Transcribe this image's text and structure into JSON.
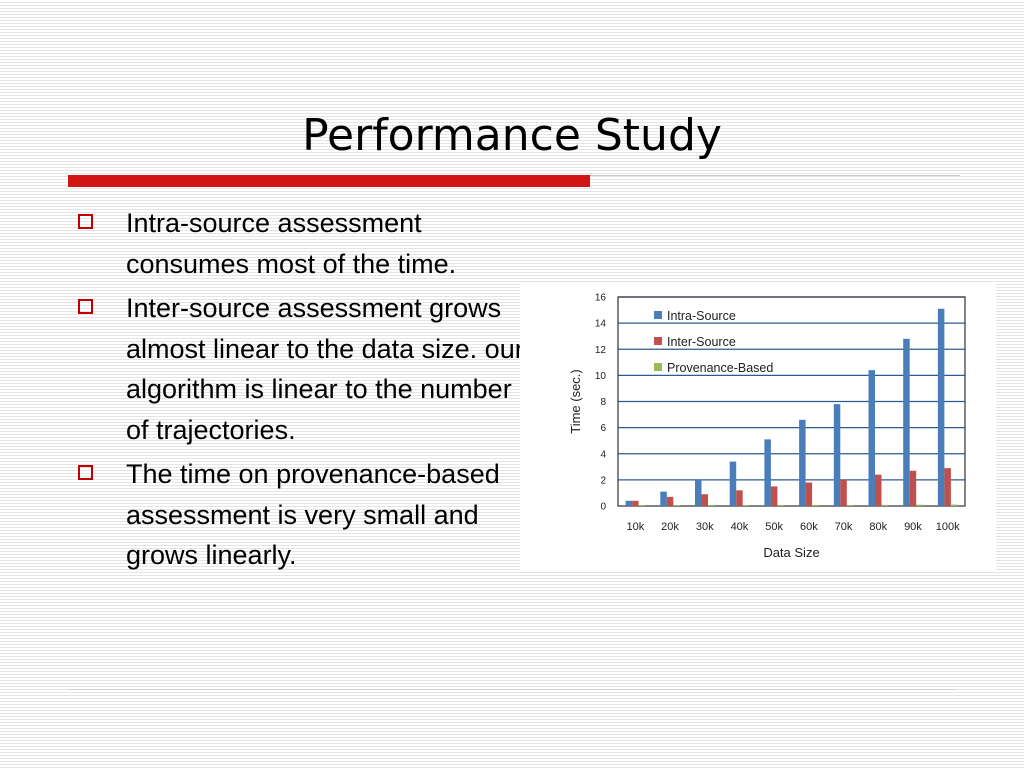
{
  "slide": {
    "title": "Performance Study",
    "bullets": [
      "Intra-source assessment consumes most of the time.",
      "Inter-source assessment grows almost linear to the data size. our algorithm is linear to the number of trajectories.",
      "The time on provenance-based assessment is very small and grows linearly."
    ]
  },
  "colors": {
    "accent": "#d11414",
    "bullet": "#c00000"
  },
  "chart_data": {
    "type": "bar",
    "title": "",
    "xlabel": "Data Size",
    "ylabel": "Time (sec.)",
    "ylim": [
      0,
      16
    ],
    "yticks": [
      0,
      2,
      4,
      6,
      8,
      10,
      12,
      14,
      16
    ],
    "grid": true,
    "legend": "top-left",
    "categories": [
      "10k",
      "20k",
      "30k",
      "40k",
      "50k",
      "60k",
      "70k",
      "80k",
      "90k",
      "100k"
    ],
    "series": [
      {
        "name": "Intra-Source",
        "color": "#4a7ebb",
        "values": [
          0.4,
          1.1,
          2.0,
          3.4,
          5.1,
          6.6,
          7.8,
          10.4,
          12.8,
          15.1
        ]
      },
      {
        "name": "Inter-Source",
        "color": "#c0504d",
        "values": [
          0.4,
          0.7,
          0.9,
          1.2,
          1.5,
          1.8,
          2.0,
          2.4,
          2.7,
          2.9
        ]
      },
      {
        "name": "Provenance-Based",
        "color": "#9bbb59",
        "values": [
          0.02,
          0.03,
          0.04,
          0.05,
          0.06,
          0.07,
          0.08,
          0.09,
          0.1,
          0.11
        ]
      }
    ]
  }
}
